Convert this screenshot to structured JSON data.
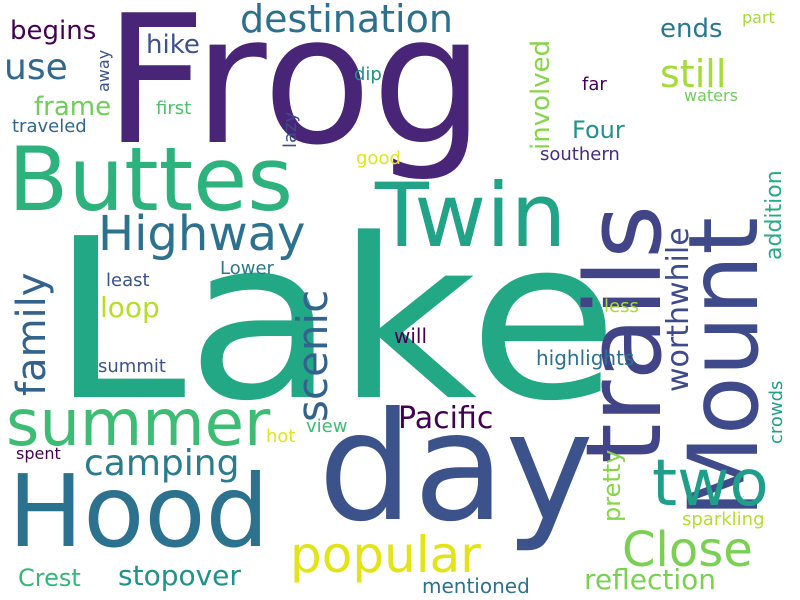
{
  "words": [
    {
      "text": "Lake",
      "color": "#22a884",
      "rotated": false
    },
    {
      "text": "Frog",
      "color": "#482576",
      "rotated": false
    },
    {
      "text": "day",
      "color": "#3b528b",
      "rotated": false
    },
    {
      "text": "trails",
      "color": "#414487",
      "rotated": true
    },
    {
      "text": "Mount",
      "color": "#3e4a89",
      "rotated": true
    },
    {
      "text": "Buttes",
      "color": "#2db27d",
      "rotated": false
    },
    {
      "text": "Hood",
      "color": "#2c728e",
      "rotated": false
    },
    {
      "text": "Twin",
      "color": "#20a386",
      "rotated": false
    },
    {
      "text": "summer",
      "color": "#3dbc74",
      "rotated": false
    },
    {
      "text": "two",
      "color": "#1f9e89",
      "rotated": false
    },
    {
      "text": "popular",
      "color": "#e2e418",
      "rotated": false
    },
    {
      "text": "Highway",
      "color": "#2c728e",
      "rotated": false
    },
    {
      "text": "Close",
      "color": "#7ad151",
      "rotated": false
    },
    {
      "text": "family",
      "color": "#33638d",
      "rotated": true
    },
    {
      "text": "scenic",
      "color": "#33638d",
      "rotated": true
    },
    {
      "text": "destination",
      "color": "#2d708e",
      "rotated": false
    },
    {
      "text": "camping",
      "color": "#287c8e",
      "rotated": false
    },
    {
      "text": "worthwhile",
      "color": "#3e4a89",
      "rotated": true
    },
    {
      "text": "Pacific",
      "color": "#440154",
      "rotated": false
    },
    {
      "text": "still",
      "color": "#a5db36",
      "rotated": false
    },
    {
      "text": "reflection",
      "color": "#7ad151",
      "rotated": false
    },
    {
      "text": "stopover",
      "color": "#21918c",
      "rotated": false
    },
    {
      "text": "use",
      "color": "#31688e",
      "rotated": false
    },
    {
      "text": "involved",
      "color": "#86d549",
      "rotated": true
    },
    {
      "text": "pretty",
      "color": "#86d549",
      "rotated": true
    },
    {
      "text": "loop",
      "color": "#b5de2b",
      "rotated": false
    },
    {
      "text": "Crest",
      "color": "#35b779",
      "rotated": false
    },
    {
      "text": "begins",
      "color": "#440154",
      "rotated": false
    },
    {
      "text": "frame",
      "color": "#6ece58",
      "rotated": false
    },
    {
      "text": "hike",
      "color": "#3b528b",
      "rotated": false
    },
    {
      "text": "ends",
      "color": "#2a788e",
      "rotated": false
    },
    {
      "text": "Four",
      "color": "#21918c",
      "rotated": false
    },
    {
      "text": "addition",
      "color": "#25ac82",
      "rotated": true
    },
    {
      "text": "crowds",
      "color": "#1fa187",
      "rotated": true
    },
    {
      "text": "highlights",
      "color": "#2c728e",
      "rotated": false
    },
    {
      "text": "sparkling",
      "color": "#b5de2b",
      "rotated": false
    },
    {
      "text": "mentioned",
      "color": "#2c728e",
      "rotated": false
    },
    {
      "text": "Lower",
      "color": "#2a788e",
      "rotated": false
    },
    {
      "text": "least",
      "color": "#3b528b",
      "rotated": false
    },
    {
      "text": "summit",
      "color": "#3b528b",
      "rotated": false
    },
    {
      "text": "will",
      "color": "#440154",
      "rotated": false
    },
    {
      "text": "southern",
      "color": "#472d7b",
      "rotated": false
    },
    {
      "text": "traveled",
      "color": "#31688e",
      "rotated": false
    },
    {
      "text": "first",
      "color": "#4ac16d",
      "rotated": false
    },
    {
      "text": "dip",
      "color": "#21918c",
      "rotated": false
    },
    {
      "text": "away",
      "color": "#3b528b",
      "rotated": true
    },
    {
      "text": "far",
      "color": "#440154",
      "rotated": false
    },
    {
      "text": "waters",
      "color": "#6ece58",
      "rotated": false
    },
    {
      "text": "part",
      "color": "#a5db36",
      "rotated": false
    },
    {
      "text": "lazy",
      "color": "#3e4a89",
      "rotated": true
    },
    {
      "text": "good",
      "color": "#e2e418",
      "rotated": false
    },
    {
      "text": "less",
      "color": "#a5db36",
      "rotated": false
    },
    {
      "text": "view",
      "color": "#3dbc74",
      "rotated": false
    },
    {
      "text": "hot",
      "color": "#e2e418",
      "rotated": false
    },
    {
      "text": "spent",
      "color": "#440154",
      "rotated": false
    }
  ]
}
